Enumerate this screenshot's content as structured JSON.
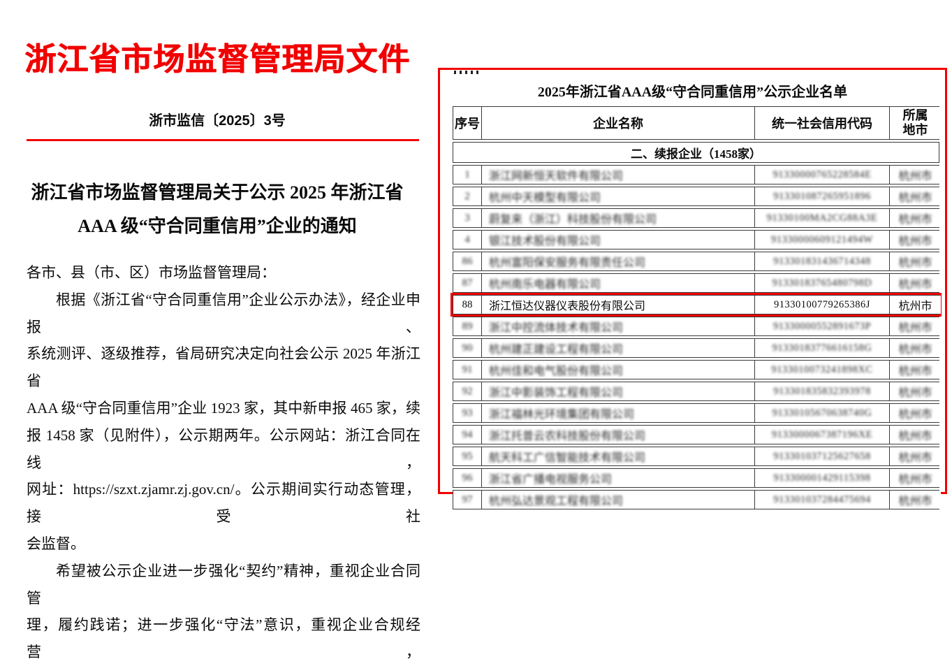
{
  "document": {
    "agency_title": "浙江省市场监督管理局文件",
    "doc_number": "浙市监信〔2025〕3号",
    "notice_title_line1": "浙江省市场监督管理局关于公示 2025 年浙江省",
    "notice_title_line2": "AAA 级“守合同重信用”企业的通知",
    "body_lines": [
      "各市、县（市、区）市场监督管理局：",
      "根据《浙江省“守合同重信用”企业公示办法》，经企业申报、",
      "系统测评、逐级推荐，省局研究决定向社会公示 2025 年浙江省",
      "AAA 级“守合同重信用”企业 1923 家，其中新申报 465 家，续",
      "报 1458 家（见附件），公示期两年。公示网站：浙江合同在线，",
      "网址：https://szxt.zjamr.zj.gov.cn/。公示期间实行动态管理，接受社",
      "会监督。",
      "希望被公示企业进一步强化“契约”精神，重视企业合同管",
      "理，履约践诺；进一步强化“守法”意识，重视企业合规经营，"
    ]
  },
  "annex": {
    "list_title": "2025年浙江省AAA级“守合同重信用”公示企业名单",
    "table": {
      "headers": {
        "no": "序号",
        "name": "企业名称",
        "code": "统一社会信用代码",
        "city": "所属\n地市"
      },
      "section_label": "二、续报企业（1458家）",
      "rows": [
        {
          "no": "1",
          "name": "浙江网新恒天软件有限公司",
          "code": "91330000765228584E",
          "city": "杭州市",
          "blurred": true,
          "highlighted": false
        },
        {
          "no": "2",
          "name": "杭州中天模型有限公司",
          "code": "913301087265951896",
          "city": "杭州市",
          "blurred": true,
          "highlighted": false
        },
        {
          "no": "3",
          "name": "蔚复来（浙江）科技股份有限公司",
          "code": "91330100MA2CG88A3E",
          "city": "杭州市",
          "blurred": true,
          "highlighted": false
        },
        {
          "no": "4",
          "name": "银江技术股份有限公司",
          "code": "91330000609121494W",
          "city": "杭州市",
          "blurred": true,
          "highlighted": false
        },
        {
          "no": "86",
          "name": "杭州富阳保安服务有限责任公司",
          "code": "913301831436714348",
          "city": "杭州市",
          "blurred": true,
          "highlighted": false
        },
        {
          "no": "87",
          "name": "杭州南乐电器有限公司",
          "code": "91330183765480798D",
          "city": "杭州市",
          "blurred": true,
          "highlighted": false
        },
        {
          "no": "88",
          "name": "浙江恒达仪器仪表股份有限公司",
          "code": "91330100779265386J",
          "city": "杭州市",
          "blurred": false,
          "highlighted": true
        },
        {
          "no": "89",
          "name": "浙江中控流体技术有限公司",
          "code": "91330000552891673P",
          "city": "杭州市",
          "blurred": true,
          "highlighted": false
        },
        {
          "no": "90",
          "name": "杭州建正建设工程有限公司",
          "code": "91330183776616158G",
          "city": "杭州市",
          "blurred": true,
          "highlighted": false
        },
        {
          "no": "91",
          "name": "杭州佳和电气股份有限公司",
          "code": "9133010073241898XC",
          "city": "杭州市",
          "blurred": true,
          "highlighted": false
        },
        {
          "no": "92",
          "name": "浙江中影装饰工程有限公司",
          "code": "913301835832393978",
          "city": "杭州市",
          "blurred": true,
          "highlighted": false
        },
        {
          "no": "93",
          "name": "浙江福林光环境集团有限公司",
          "code": "91330105670638740G",
          "city": "杭州市",
          "blurred": true,
          "highlighted": false
        },
        {
          "no": "94",
          "name": "浙江托普云农科技股份有限公司",
          "code": "9133000067387196XE",
          "city": "杭州市",
          "blurred": true,
          "highlighted": false
        },
        {
          "no": "95",
          "name": "航天科工广信智能技术有限公司",
          "code": "913301037125627658",
          "city": "杭州市",
          "blurred": true,
          "highlighted": false
        },
        {
          "no": "96",
          "name": "浙江省广播电视服务公司",
          "code": "913300001429115398",
          "city": "杭州市",
          "blurred": true,
          "highlighted": false
        },
        {
          "no": "97",
          "name": "杭州弘达景观工程有限公司",
          "code": "913301037284475694",
          "city": "杭州市",
          "blurred": true,
          "highlighted": false
        }
      ]
    }
  },
  "colors": {
    "accent_red": "#f20000",
    "text_black": "#0b0b0b",
    "table_border": "#3a3a3a"
  }
}
